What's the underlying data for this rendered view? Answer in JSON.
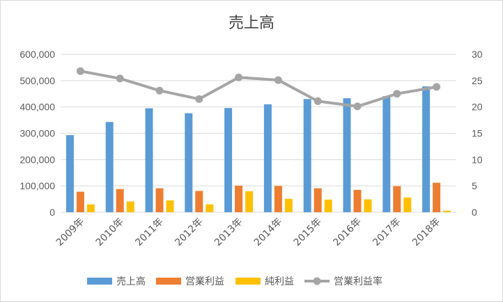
{
  "chart_data": {
    "type": "bar",
    "title": "売上高",
    "categories": [
      "2009年",
      "2010年",
      "2011年",
      "2012年",
      "2013年",
      "2014年",
      "2015年",
      "2016年",
      "2017年",
      "2018年"
    ],
    "series": [
      {
        "name": "売上高",
        "type": "bar",
        "axis": "left",
        "color": "#5B9BD5",
        "values": [
          293000,
          343000,
          395000,
          376000,
          396000,
          410000,
          430000,
          433000,
          441000,
          478000
        ]
      },
      {
        "name": "営業利益",
        "type": "bar",
        "axis": "left",
        "color": "#ED7D31",
        "values": [
          78000,
          88000,
          91000,
          81000,
          101000,
          100000,
          91000,
          85000,
          99000,
          112000
        ]
      },
      {
        "name": "純利益",
        "type": "bar",
        "axis": "left",
        "color": "#FFC000",
        "values": [
          30000,
          41000,
          45000,
          30000,
          80000,
          51000,
          48000,
          49000,
          56000,
          6000
        ]
      },
      {
        "name": "営業利益率",
        "type": "line",
        "axis": "right",
        "color": "#A5A5A5",
        "values": [
          26.8,
          25.4,
          23.1,
          21.5,
          25.6,
          25.1,
          21.1,
          20.1,
          22.5,
          23.8
        ]
      }
    ],
    "y_left": {
      "ylim": [
        0,
        600000
      ],
      "ticks": [
        "0",
        "100,000",
        "200,000",
        "300,000",
        "400,000",
        "500,000",
        "600,000"
      ]
    },
    "y_right": {
      "ylim": [
        0,
        30
      ],
      "ticks": [
        "0",
        "5",
        "10",
        "15",
        "20",
        "25",
        "30"
      ]
    },
    "grid": true,
    "legend_position": "bottom"
  }
}
